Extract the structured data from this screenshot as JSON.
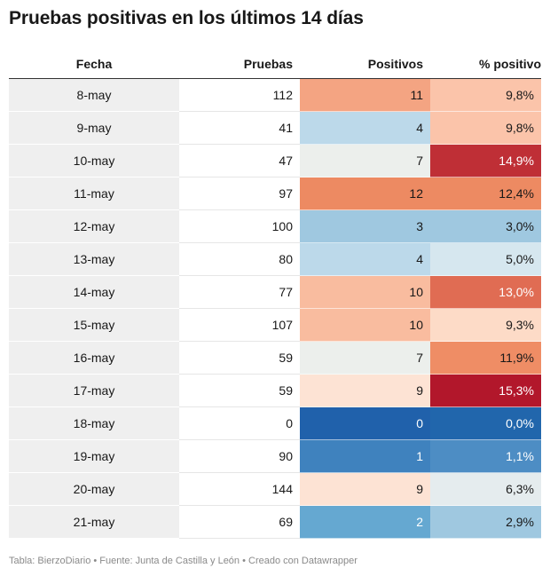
{
  "title": "Pruebas positivas en los últimos 14 días",
  "footer": "Tabla: BierzoDiario • Fuente: Junta de Castilla y León • Creado con Datawrapper",
  "chart_data": {
    "type": "table",
    "columns": [
      "Fecha",
      "Pruebas",
      "Positivos",
      "% positivo"
    ],
    "rows": [
      {
        "fecha": "8-may",
        "pruebas": "112",
        "positivos": "11",
        "pct": "9,8%",
        "pos_color": "#f4a482",
        "pct_color": "#fbc4aa"
      },
      {
        "fecha": "9-may",
        "pruebas": "41",
        "positivos": "4",
        "pct": "9,8%",
        "pos_color": "#bcd9ea",
        "pct_color": "#fbc4aa"
      },
      {
        "fecha": "10-may",
        "pruebas": "47",
        "positivos": "7",
        "pct": "14,9%",
        "pos_color": "#ecefec",
        "pct_color": "#bf2f36",
        "pct_text": "#ffffff"
      },
      {
        "fecha": "11-may",
        "pruebas": "97",
        "positivos": "12",
        "pct": "12,4%",
        "pos_color": "#ed8a62",
        "pct_color": "#ed8a62"
      },
      {
        "fecha": "12-may",
        "pruebas": "100",
        "positivos": "3",
        "pct": "3,0%",
        "pos_color": "#9fc8e0",
        "pct_color": "#9fc8e0"
      },
      {
        "fecha": "13-may",
        "pruebas": "80",
        "positivos": "4",
        "pct": "5,0%",
        "pos_color": "#bcd9ea",
        "pct_color": "#d6e7ef"
      },
      {
        "fecha": "14-may",
        "pruebas": "77",
        "positivos": "10",
        "pct": "13,0%",
        "pos_color": "#f9bc9f",
        "pct_color": "#e06c53",
        "pct_text": "#ffffff"
      },
      {
        "fecha": "15-may",
        "pruebas": "107",
        "positivos": "10",
        "pct": "9,3%",
        "pos_color": "#f9bc9f",
        "pct_color": "#fddbc7"
      },
      {
        "fecha": "16-may",
        "pruebas": "59",
        "positivos": "7",
        "pct": "11,9%",
        "pos_color": "#ecefec",
        "pct_color": "#ef8d65"
      },
      {
        "fecha": "17-may",
        "pruebas": "59",
        "positivos": "9",
        "pct": "15,3%",
        "pos_color": "#fde3d4",
        "pct_color": "#b2172b",
        "pct_text": "#ffffff"
      },
      {
        "fecha": "18-may",
        "pruebas": "0",
        "positivos": "0",
        "pct": "0,0%",
        "pos_color": "#2061ab",
        "pct_color": "#2166ac",
        "pos_text": "#ffffff",
        "pct_text": "#ffffff"
      },
      {
        "fecha": "19-may",
        "pruebas": "90",
        "positivos": "1",
        "pct": "1,1%",
        "pos_color": "#3f82be",
        "pct_color": "#4d8dc4",
        "pos_text": "#ffffff",
        "pct_text": "#ffffff"
      },
      {
        "fecha": "20-may",
        "pruebas": "144",
        "positivos": "9",
        "pct": "6,3%",
        "pos_color": "#fde3d4",
        "pct_color": "#e5ecee"
      },
      {
        "fecha": "21-may",
        "pruebas": "69",
        "positivos": "2",
        "pct": "2,9%",
        "pos_color": "#65a8d1",
        "pct_color": "#9fc8e0",
        "pos_text": "#ffffff"
      }
    ]
  }
}
